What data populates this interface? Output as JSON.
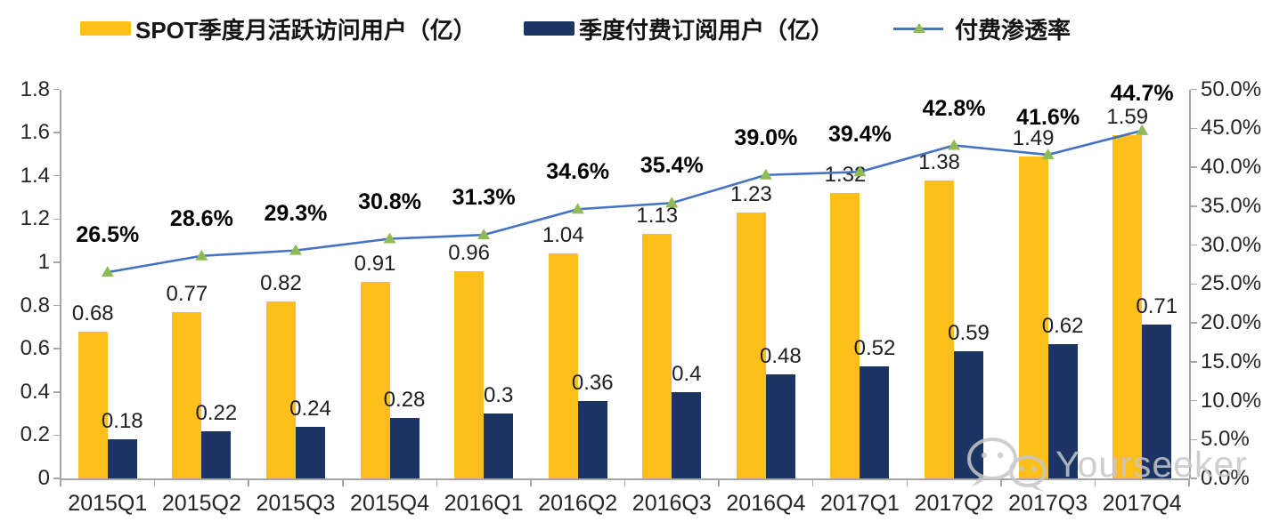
{
  "legend": {
    "mau_label": "SPOT季度月活跃访问用户（亿）",
    "subs_label": "季度付费订阅用户（亿）",
    "pct_label": "付费渗透率"
  },
  "watermark": {
    "text": "Yourseeker",
    "icon": "wechat-icon"
  },
  "colors": {
    "mau_bar": "#FCBF1C",
    "subs_bar": "#1A3464",
    "line": "#4472C4",
    "marker": "#8EBB55",
    "axis": "#A6A6A6",
    "tick_label": "#262626",
    "value_label": "#1F1F1F",
    "pct_label": "#000000",
    "watermark": "#C7C7C7"
  },
  "chart_data": {
    "type": "bar+line combo",
    "title": "",
    "grid": false,
    "legend_position": "top",
    "categories": [
      "2015Q1",
      "2015Q2",
      "2015Q3",
      "2015Q4",
      "2016Q1",
      "2016Q2",
      "2016Q3",
      "2016Q4",
      "2017Q1",
      "2017Q2",
      "2017Q3",
      "2017Q4"
    ],
    "series": [
      {
        "name": "SPOT季度月活跃访问用户（亿）",
        "type": "bar",
        "axis": "left",
        "color": "#FCBF1C",
        "values": [
          0.68,
          0.77,
          0.82,
          0.91,
          0.96,
          1.04,
          1.13,
          1.23,
          1.32,
          1.38,
          1.49,
          1.59
        ],
        "labels": [
          "0.68",
          "0.77",
          "0.82",
          "0.91",
          "0.96",
          "1.04",
          "1.13",
          "1.23",
          "1.32",
          "1.38",
          "1.49",
          "1.59"
        ]
      },
      {
        "name": "季度付费订阅用户（亿）",
        "type": "bar",
        "axis": "left",
        "color": "#1A3464",
        "values": [
          0.18,
          0.22,
          0.24,
          0.28,
          0.3,
          0.36,
          0.4,
          0.48,
          0.52,
          0.59,
          0.62,
          0.71
        ],
        "labels": [
          "0.18",
          "0.22",
          "0.24",
          "0.28",
          "0.3",
          "0.36",
          "0.4",
          "0.48",
          "0.52",
          "0.59",
          "0.62",
          "0.71"
        ]
      },
      {
        "name": "付费渗透率",
        "type": "line",
        "axis": "right",
        "color": "#4472C4",
        "marker": "triangle",
        "marker_color": "#8EBB55",
        "values": [
          26.5,
          28.6,
          29.3,
          30.8,
          31.3,
          34.6,
          35.4,
          39.0,
          39.4,
          42.8,
          41.6,
          44.7
        ],
        "labels": [
          "26.5%",
          "28.6%",
          "29.3%",
          "30.8%",
          "31.3%",
          "34.6%",
          "35.4%",
          "39.0%",
          "39.4%",
          "42.8%",
          "41.6%",
          "44.7%"
        ]
      }
    ],
    "left_axis": {
      "min": 0,
      "max": 1.8,
      "step": 0.2,
      "ticks": [
        "0",
        "0.2",
        "0.4",
        "0.6",
        "0.8",
        "1",
        "1.2",
        "1.4",
        "1.6",
        "1.8"
      ]
    },
    "right_axis": {
      "min": 0,
      "max": 50,
      "step": 5,
      "ticks": [
        "0.0%",
        "5.0%",
        "10.0%",
        "15.0%",
        "20.0%",
        "25.0%",
        "30.0%",
        "35.0%",
        "40.0%",
        "45.0%",
        "50.0%"
      ]
    }
  }
}
